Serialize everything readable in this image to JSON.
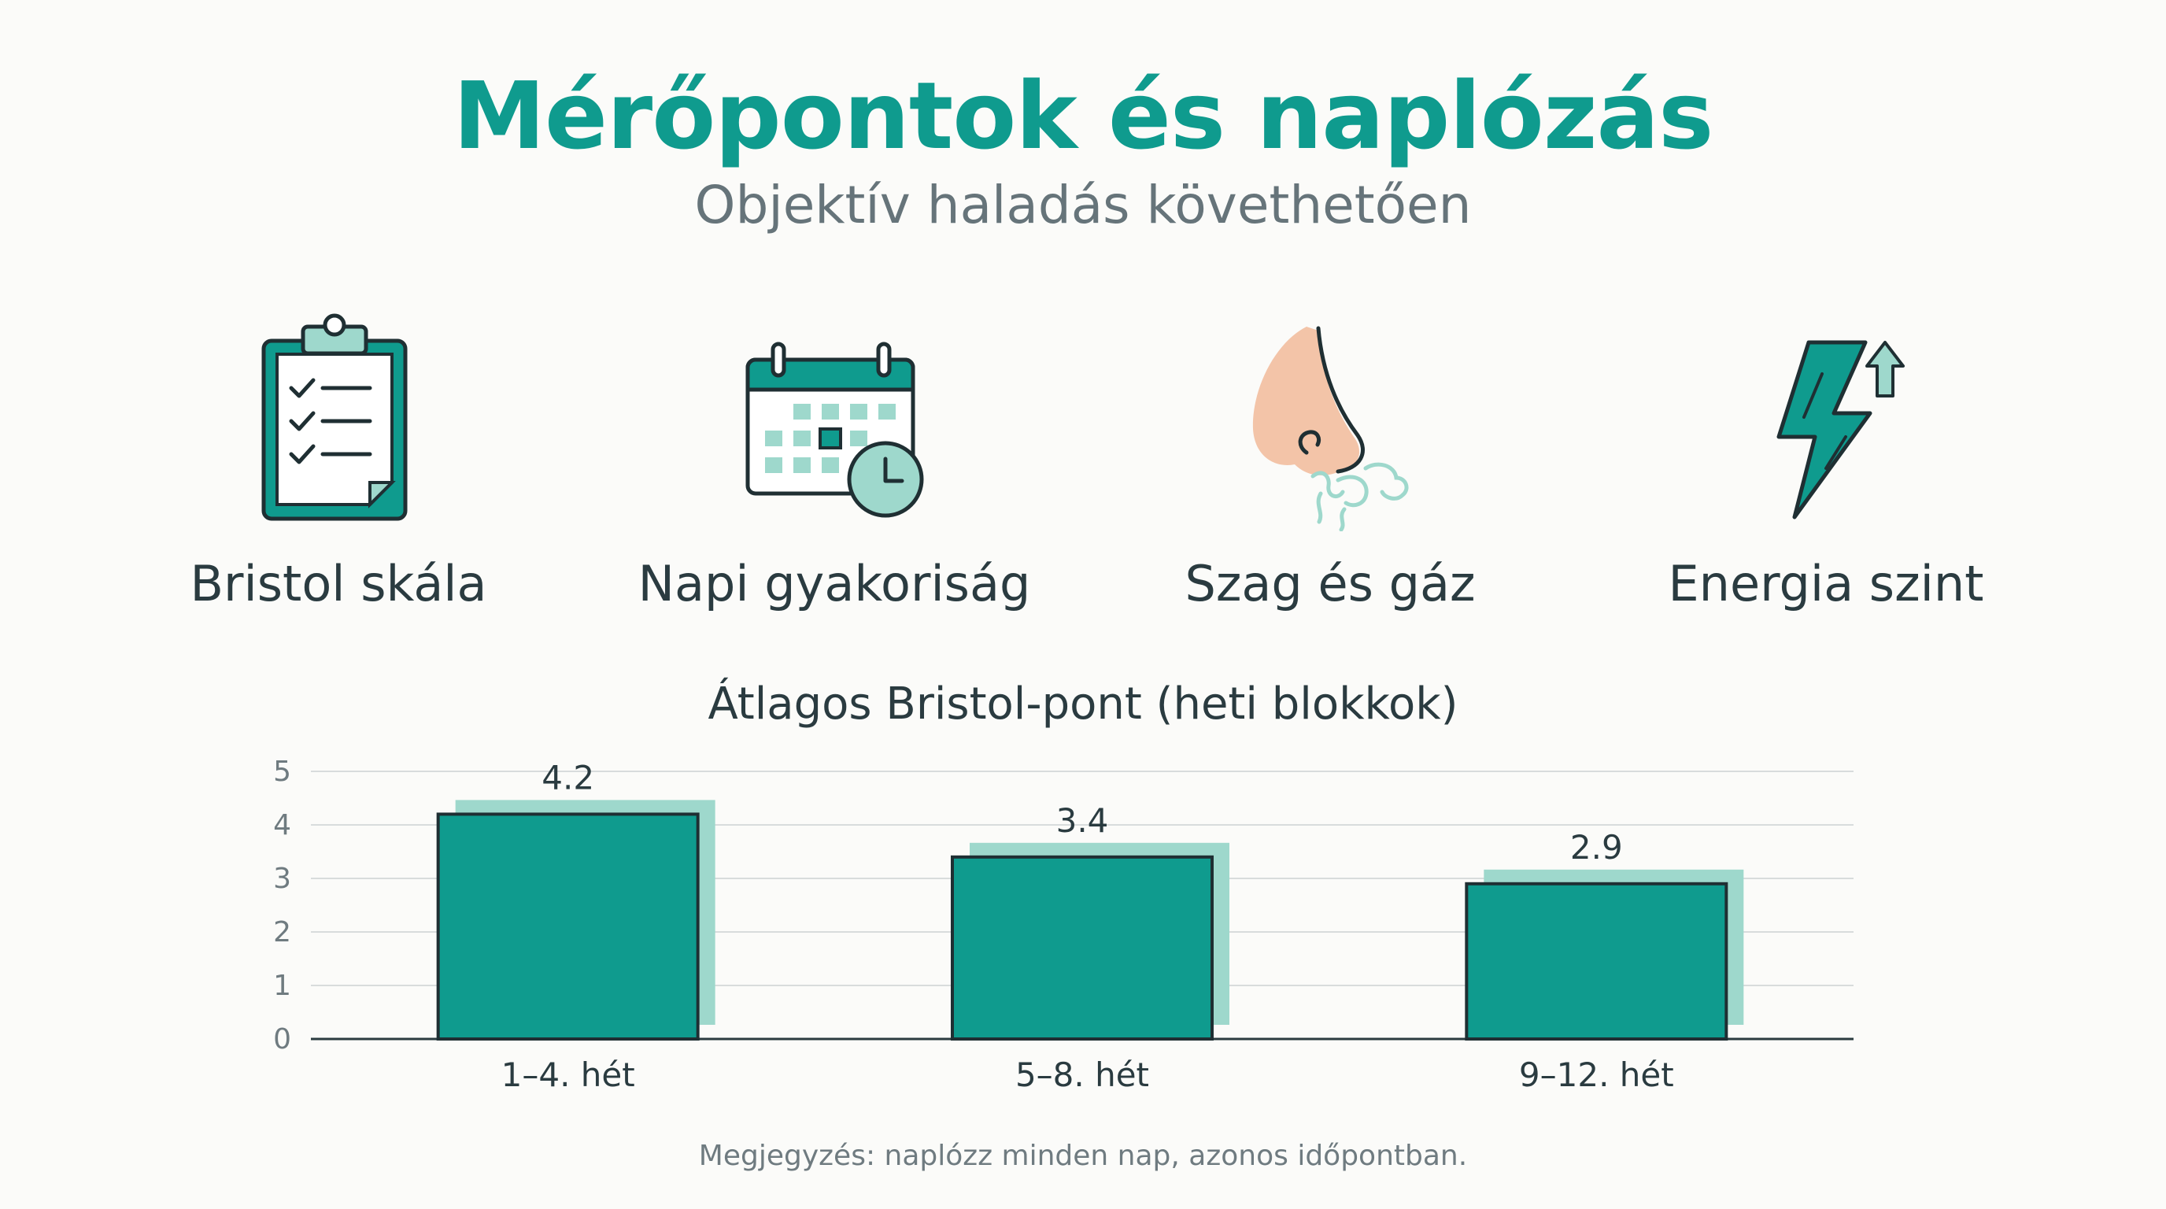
{
  "header": {
    "title": "Mérőpontok és naplózás",
    "subtitle": "Objektív haladás követhetően"
  },
  "metrics": [
    {
      "label": "Bristol skála",
      "icon": "clipboard-checklist-icon"
    },
    {
      "label": "Napi gyakoriság",
      "icon": "calendar-clock-icon"
    },
    {
      "label": "Szag és gáz",
      "icon": "nose-smell-icon"
    },
    {
      "label": "Energia szint",
      "icon": "lightning-up-arrow-icon"
    }
  ],
  "colors": {
    "accent": "#0f9b8e",
    "bar": "#0f9b8e",
    "bar_shadow": "#9ed8cc",
    "text_dark": "#2a3b40",
    "text_muted": "#66747a",
    "grid": "#d8dcdc",
    "nose": "#f3c4a8"
  },
  "chart_data": {
    "type": "bar",
    "title": "Átlagos Bristol-pont (heti blokkok)",
    "categories": [
      "1–4. hét",
      "5–8. hét",
      "9–12. hét"
    ],
    "values": [
      4.2,
      3.4,
      2.9
    ],
    "value_labels": [
      "4.2",
      "3.4",
      "2.9"
    ],
    "yticks": [
      "0",
      "1",
      "2",
      "3",
      "4",
      "5"
    ],
    "ylim": [
      0,
      5
    ],
    "grid": true
  },
  "note": "Megjegyzés: naplózz minden nap, azonos időpontban."
}
